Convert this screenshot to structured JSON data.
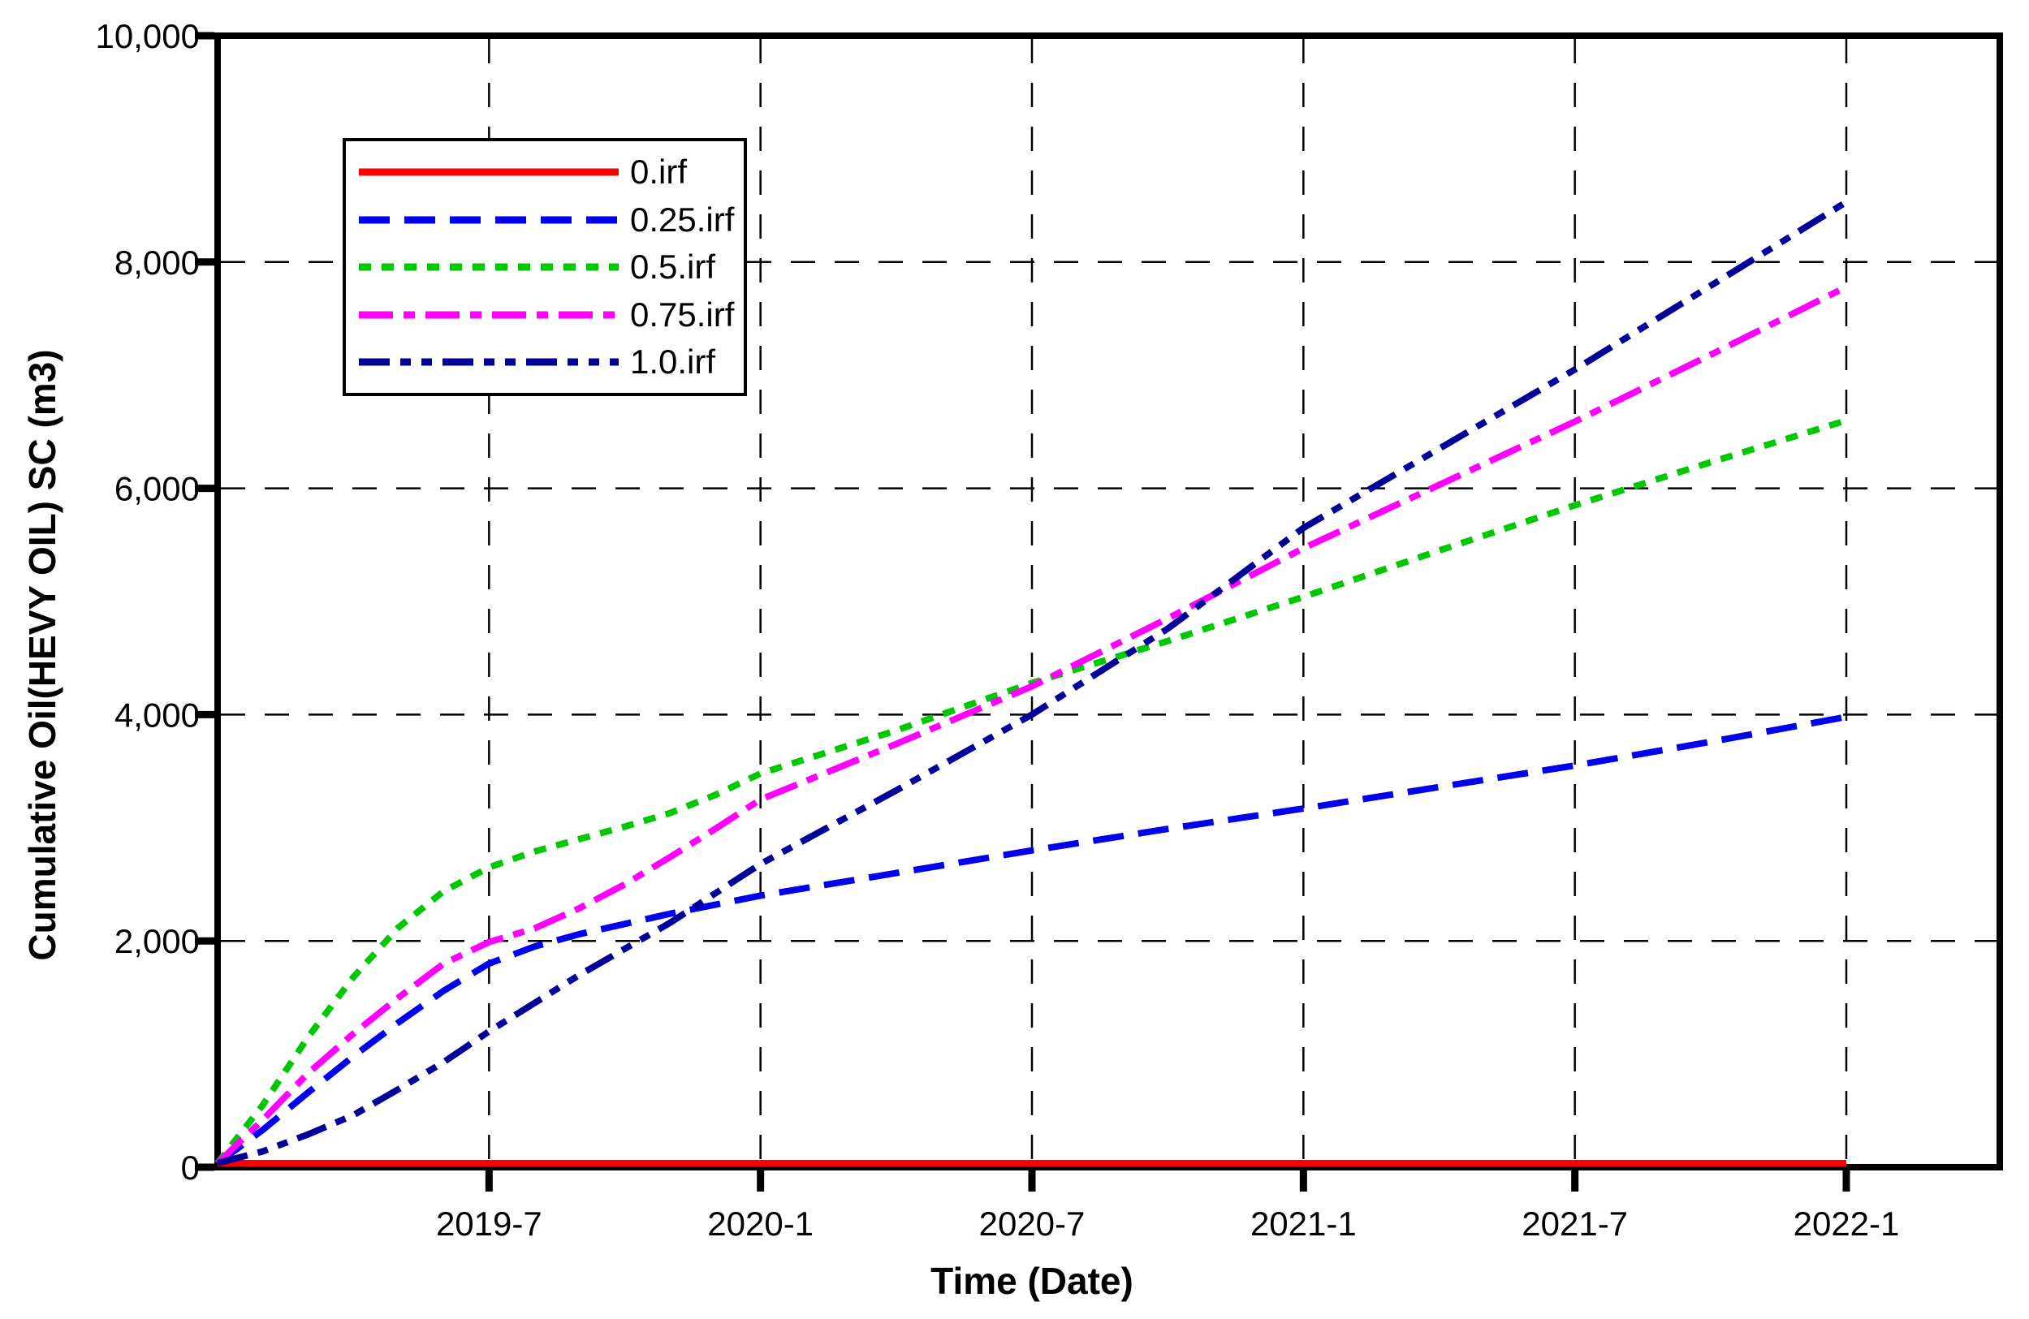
{
  "chart_data": {
    "type": "line",
    "title": "",
    "xlabel": "Time (Date)",
    "ylabel": "Cumulative Oil(HEVY OIL) SC (m3)",
    "x_axis_note": "dates from 2019-1 to 2022-1, t = months since 2019-1",
    "xlim_months": [
      0,
      39.4
    ],
    "ylim": [
      0,
      10000
    ],
    "grid": true,
    "legend_position": "upper-left",
    "xticks": [
      {
        "t": 6,
        "label": "2019-7"
      },
      {
        "t": 12,
        "label": "2020-1"
      },
      {
        "t": 18,
        "label": "2020-7"
      },
      {
        "t": 24,
        "label": "2021-1"
      },
      {
        "t": 30,
        "label": "2021-7"
      },
      {
        "t": 36,
        "label": "2022-1"
      }
    ],
    "yticks": [
      {
        "v": 0,
        "label": "0"
      },
      {
        "v": 2000,
        "label": "2,000"
      },
      {
        "v": 4000,
        "label": "4,000"
      },
      {
        "v": 6000,
        "label": "6,000"
      },
      {
        "v": 8000,
        "label": "8,000"
      },
      {
        "v": 10000,
        "label": "10,000"
      }
    ],
    "series": [
      {
        "name": "0.irf",
        "color": "#ff0000",
        "dash": "solid",
        "points": [
          [
            0,
            0
          ],
          [
            36,
            0
          ]
        ]
      },
      {
        "name": "0.25.irf",
        "color": "#0000f0",
        "dash": "long-dash",
        "points": [
          [
            0,
            0
          ],
          [
            1,
            330
          ],
          [
            2,
            660
          ],
          [
            3,
            980
          ],
          [
            4,
            1280
          ],
          [
            5,
            1560
          ],
          [
            6,
            1800
          ],
          [
            7,
            1950
          ],
          [
            8,
            2060
          ],
          [
            9,
            2150
          ],
          [
            10,
            2240
          ],
          [
            11,
            2320
          ],
          [
            12,
            2400
          ],
          [
            15,
            2600
          ],
          [
            18,
            2800
          ],
          [
            21,
            2990
          ],
          [
            24,
            3170
          ],
          [
            27,
            3360
          ],
          [
            30,
            3550
          ],
          [
            33,
            3760
          ],
          [
            36,
            3980
          ]
        ]
      },
      {
        "name": "0.5.irf",
        "color": "#00c800",
        "dash": "dot",
        "points": [
          [
            0,
            0
          ],
          [
            1,
            550
          ],
          [
            2,
            1150
          ],
          [
            3,
            1680
          ],
          [
            4,
            2120
          ],
          [
            5,
            2440
          ],
          [
            6,
            2650
          ],
          [
            7,
            2790
          ],
          [
            8,
            2900
          ],
          [
            9,
            3010
          ],
          [
            10,
            3130
          ],
          [
            11,
            3290
          ],
          [
            12,
            3480
          ],
          [
            15,
            3860
          ],
          [
            18,
            4280
          ],
          [
            21,
            4650
          ],
          [
            24,
            5040
          ],
          [
            27,
            5450
          ],
          [
            30,
            5850
          ],
          [
            33,
            6230
          ],
          [
            36,
            6600
          ]
        ]
      },
      {
        "name": "0.75.irf",
        "color": "#ff00ff",
        "dash": "dash-dot",
        "points": [
          [
            0,
            0
          ],
          [
            1,
            420
          ],
          [
            2,
            830
          ],
          [
            3,
            1180
          ],
          [
            4,
            1500
          ],
          [
            5,
            1800
          ],
          [
            6,
            1990
          ],
          [
            7,
            2110
          ],
          [
            8,
            2290
          ],
          [
            9,
            2500
          ],
          [
            10,
            2740
          ],
          [
            11,
            2990
          ],
          [
            12,
            3250
          ],
          [
            15,
            3740
          ],
          [
            18,
            4250
          ],
          [
            21,
            4850
          ],
          [
            24,
            5470
          ],
          [
            27,
            6030
          ],
          [
            30,
            6590
          ],
          [
            33,
            7180
          ],
          [
            36,
            7780
          ]
        ]
      },
      {
        "name": "1.0.irf",
        "color": "#000099",
        "dash": "dash-dot-dot",
        "points": [
          [
            0,
            0
          ],
          [
            1,
            140
          ],
          [
            2,
            290
          ],
          [
            3,
            460
          ],
          [
            4,
            690
          ],
          [
            5,
            930
          ],
          [
            6,
            1200
          ],
          [
            7,
            1450
          ],
          [
            8,
            1700
          ],
          [
            9,
            1930
          ],
          [
            10,
            2160
          ],
          [
            11,
            2420
          ],
          [
            12,
            2680
          ],
          [
            15,
            3330
          ],
          [
            18,
            4000
          ],
          [
            21,
            4760
          ],
          [
            24,
            5650
          ],
          [
            27,
            6350
          ],
          [
            30,
            7050
          ],
          [
            33,
            7790
          ],
          [
            36,
            8530
          ]
        ]
      }
    ]
  }
}
